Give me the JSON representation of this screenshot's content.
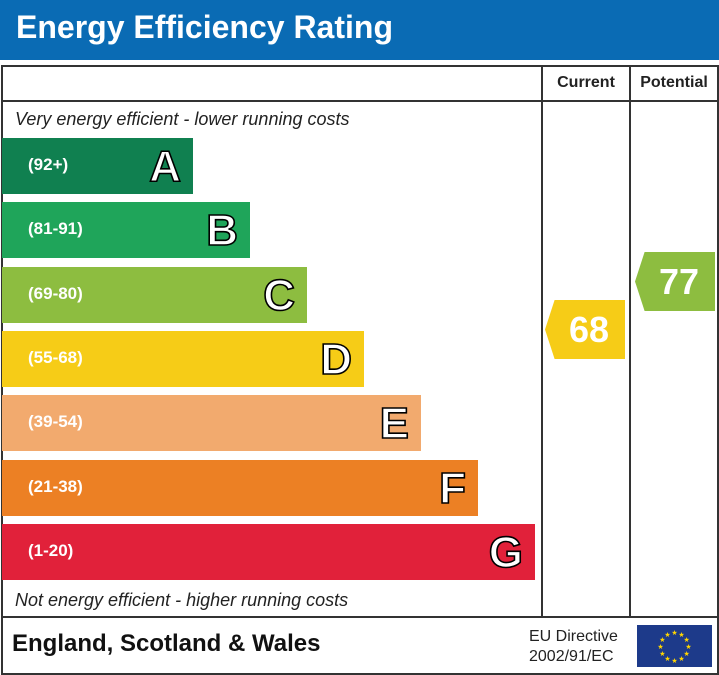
{
  "header": {
    "title": "Energy Efficiency Rating"
  },
  "columns": {
    "current": "Current",
    "potential": "Potential"
  },
  "chart_data": {
    "type": "bar",
    "title": "Energy Efficiency Rating",
    "top_note": "Very energy efficient - lower running costs",
    "bottom_note": "Not energy efficient - higher running costs",
    "bands": [
      {
        "letter": "A",
        "range": "(92+)",
        "color": "#108050"
      },
      {
        "letter": "B",
        "range": "(81-91)",
        "color": "#1fa55a"
      },
      {
        "letter": "C",
        "range": "(69-80)",
        "color": "#8dbd40"
      },
      {
        "letter": "D",
        "range": "(55-68)",
        "color": "#f6cc17"
      },
      {
        "letter": "E",
        "range": "(39-54)",
        "color": "#f2aa6e"
      },
      {
        "letter": "F",
        "range": "(21-38)",
        "color": "#ec8024"
      },
      {
        "letter": "G",
        "range": "(1-20)",
        "color": "#e1213a"
      }
    ],
    "current": {
      "value": 68,
      "color": "#f6cc17"
    },
    "potential": {
      "value": 77,
      "color": "#8dbd40"
    }
  },
  "footer": {
    "region": "England, Scotland & Wales",
    "directive_line1": "EU Directive",
    "directive_line2": "2002/91/EC",
    "flag_icon": "eu-flag-icon"
  }
}
